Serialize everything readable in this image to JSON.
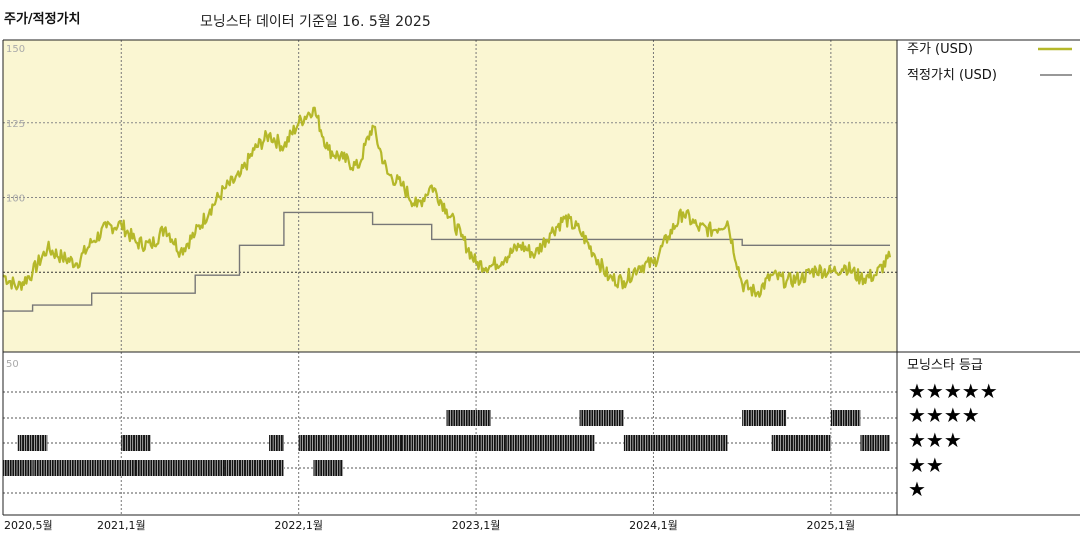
{
  "header": {
    "title": "주가/적정가치",
    "subtitle": "모닝스타 데이터 기준일 16. 5월 2025"
  },
  "colors": {
    "price": "#b5b82a",
    "fair_value": "#777777",
    "plot_bg": "#faf6d2",
    "rating_bar": "#111111"
  },
  "legend": {
    "price_label": "주가 (USD)",
    "fair_value_label": "적정가치 (USD)"
  },
  "rating_panel": {
    "title": "모닝스타 등급",
    "star_labels": [
      "★★★★★",
      "★★★★",
      "★★★",
      "★★",
      "★"
    ]
  },
  "chart_data": {
    "type": "line",
    "title": "주가/적정가치",
    "ylim": [
      50,
      150
    ],
    "yticks": [
      "150",
      "125",
      "100"
    ],
    "rating_tick": "50",
    "x_start": "2020-05",
    "x_end": "2025-05",
    "xticks": [
      "2020,5월",
      "2021,1월",
      "2022,1월",
      "2023,1월",
      "2024,1월",
      "2025,1월"
    ],
    "series": [
      {
        "name": "주가 (USD)",
        "points": [
          [
            "2020-05",
            74
          ],
          [
            "2020-06",
            70
          ],
          [
            "2020-07",
            75
          ],
          [
            "2020-08",
            83
          ],
          [
            "2020-09",
            80
          ],
          [
            "2020-10",
            78
          ],
          [
            "2020-11",
            85
          ],
          [
            "2020-12",
            90
          ],
          [
            "2021-01",
            91
          ],
          [
            "2021-02",
            85
          ],
          [
            "2021-03",
            84
          ],
          [
            "2021-04",
            90
          ],
          [
            "2021-05",
            82
          ],
          [
            "2021-06",
            88
          ],
          [
            "2021-07",
            96
          ],
          [
            "2021-08",
            103
          ],
          [
            "2021-09",
            107
          ],
          [
            "2021-10",
            116
          ],
          [
            "2021-11",
            121
          ],
          [
            "2021-12",
            117
          ],
          [
            "2022-01",
            125
          ],
          [
            "2022-02",
            130
          ],
          [
            "2022-03",
            116
          ],
          [
            "2022-04",
            113
          ],
          [
            "2022-05",
            110
          ],
          [
            "2022-06",
            124
          ],
          [
            "2022-07",
            108
          ],
          [
            "2022-08",
            104
          ],
          [
            "2022-09",
            97
          ],
          [
            "2022-10",
            104
          ],
          [
            "2022-11",
            96
          ],
          [
            "2022-12",
            87
          ],
          [
            "2023-01",
            78
          ],
          [
            "2023-02",
            77
          ],
          [
            "2023-03",
            80
          ],
          [
            "2023-04",
            84
          ],
          [
            "2023-05",
            81
          ],
          [
            "2023-06",
            88
          ],
          [
            "2023-07",
            93
          ],
          [
            "2023-08",
            89
          ],
          [
            "2023-09",
            81
          ],
          [
            "2023-10",
            73
          ],
          [
            "2023-11",
            72
          ],
          [
            "2023-12",
            77
          ],
          [
            "2024-01",
            78
          ],
          [
            "2024-02",
            87
          ],
          [
            "2024-03",
            95
          ],
          [
            "2024-04",
            90
          ],
          [
            "2024-05",
            89
          ],
          [
            "2024-06",
            92
          ],
          [
            "2024-07",
            71
          ],
          [
            "2024-08",
            68
          ],
          [
            "2024-09",
            74
          ],
          [
            "2024-10",
            72
          ],
          [
            "2024-11",
            73
          ],
          [
            "2024-12",
            76
          ],
          [
            "2025-01",
            75
          ],
          [
            "2025-02",
            77
          ],
          [
            "2025-03",
            73
          ],
          [
            "2025-04",
            74
          ],
          [
            "2025-05",
            80
          ]
        ]
      },
      {
        "name": "적정가치 (USD)",
        "steps": [
          [
            "2020-05",
            62
          ],
          [
            "2020-07",
            64
          ],
          [
            "2020-11",
            68
          ],
          [
            "2021-06",
            74
          ],
          [
            "2021-09",
            84
          ],
          [
            "2021-12",
            95
          ],
          [
            "2022-06",
            91
          ],
          [
            "2022-10",
            86
          ],
          [
            "2024-07",
            84
          ],
          [
            "2025-05",
            84
          ]
        ]
      }
    ],
    "rating_rows": [
      {
        "stars": 5,
        "ranges": []
      },
      {
        "stars": 4,
        "ranges": [
          [
            "2022-11",
            "2022-12"
          ],
          [
            "2023-01",
            "2023-01"
          ],
          [
            "2023-08",
            "2023-10"
          ],
          [
            "2024-07",
            "2024-09"
          ],
          [
            "2025-01",
            "2025-02"
          ]
        ]
      },
      {
        "stars": 3,
        "ranges": [
          [
            "2020-06",
            "2020-07"
          ],
          [
            "2021-01",
            "2021-02"
          ],
          [
            "2021-11",
            "2021-11"
          ],
          [
            "2022-01",
            "2022-02"
          ],
          [
            "2022-03",
            "2022-07"
          ],
          [
            "2022-08",
            "2023-02"
          ],
          [
            "2023-03",
            "2023-08"
          ],
          [
            "2023-11",
            "2024-05"
          ],
          [
            "2024-09",
            "2024-12"
          ],
          [
            "2025-03",
            "2025-04"
          ]
        ]
      },
      {
        "stars": 2,
        "ranges": [
          [
            "2020-05",
            "2020-06"
          ],
          [
            "2020-07",
            "2021-01"
          ],
          [
            "2021-02",
            "2021-07"
          ],
          [
            "2021-08",
            "2021-11"
          ],
          [
            "2022-02",
            "2022-03"
          ]
        ]
      },
      {
        "stars": 1,
        "ranges": []
      }
    ]
  }
}
